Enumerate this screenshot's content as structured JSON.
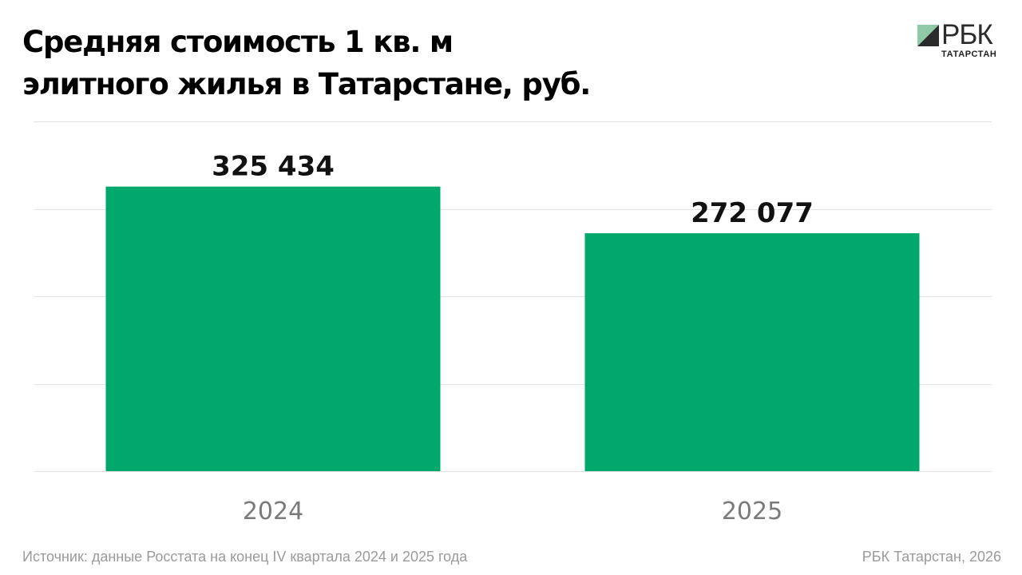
{
  "header": {
    "title_line1": "Средняя стоимость 1 кв. м",
    "title_line2": "элитного жилья в Татарстане, руб."
  },
  "logo": {
    "name": "РБК",
    "subtitle": "ТАТАРСТАН",
    "colors": {
      "light": "#8fc9a8",
      "dark": "#2b2b2b"
    }
  },
  "chart_data": {
    "type": "bar",
    "title": "Средняя стоимость 1 кв. м элитного жилья в Татарстане, руб.",
    "categories": [
      "2024",
      "2025"
    ],
    "values": [
      325434,
      272077
    ],
    "value_labels": [
      "325 434",
      "272 077"
    ],
    "ylim": [
      0,
      400000
    ],
    "grid": true,
    "legend": "none",
    "colors": {
      "bar": "#00a86b",
      "grid": "#e2e2e2"
    }
  },
  "footer": {
    "source": "Источник: данные Росстата на конец IV квартала 2024 и 2025 года",
    "credit": "РБК Татарстан, 2026"
  }
}
